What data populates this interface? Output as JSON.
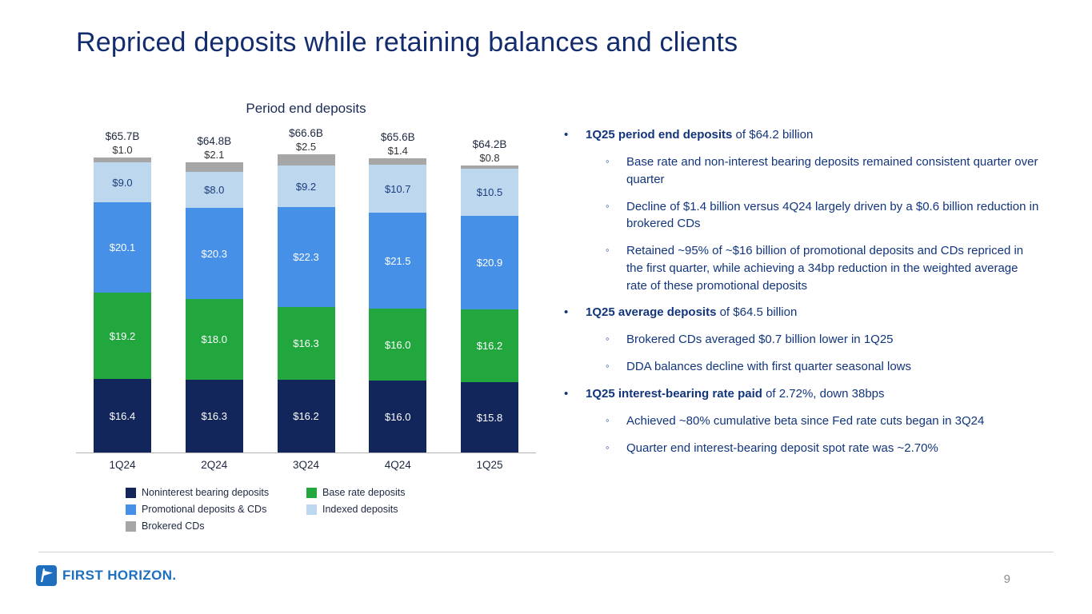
{
  "title": "Repriced deposits while retaining balances and clients",
  "chart_data": {
    "type": "bar",
    "stacked": true,
    "title": "Period end deposits",
    "unit": "$B",
    "ylim": [
      0,
      70
    ],
    "categories": [
      "1Q24",
      "2Q24",
      "3Q24",
      "4Q24",
      "1Q25"
    ],
    "totals_label": [
      "$65.7B",
      "$64.8B",
      "$66.6B",
      "$65.6B",
      "$64.2B"
    ],
    "series": [
      {
        "name": "Noninterest bearing deposits",
        "color": "#13265c",
        "text_color": "#ffffff",
        "values": [
          16.4,
          16.3,
          16.2,
          16.0,
          15.8
        ]
      },
      {
        "name": "Base rate deposits",
        "color": "#21a73e",
        "text_color": "#ffffff",
        "values": [
          19.2,
          18.0,
          16.3,
          16.0,
          16.2
        ]
      },
      {
        "name": "Promotional deposits & CDs",
        "color": "#4790e8",
        "text_color": "#ffffff",
        "values": [
          20.1,
          20.3,
          22.3,
          21.5,
          20.9
        ]
      },
      {
        "name": "Indexed deposits",
        "color": "#bdd7ee",
        "text_color": "#1b3c7d",
        "values": [
          9.0,
          8.0,
          9.2,
          10.7,
          10.5
        ]
      },
      {
        "name": "Brokered CDs",
        "color": "#a6a6a6",
        "text_color": "#333333",
        "label_position": "above",
        "values": [
          1.0,
          2.1,
          2.5,
          1.4,
          0.8
        ]
      }
    ],
    "legend_position": "bottom"
  },
  "bullets": [
    {
      "bold": "1Q25 period end deposits",
      "rest": " of $64.2 billion",
      "subs": [
        "Base rate and non-interest bearing deposits remained consistent quarter over quarter",
        "Decline of $1.4 billion versus 4Q24 largely driven by a $0.6 billion reduction in brokered CDs",
        "Retained ~95% of ~$16 billion of promotional deposits and CDs repriced in the first quarter, while achieving a 34bp reduction in the weighted average rate of these promotional deposits"
      ]
    },
    {
      "bold": "1Q25 average deposits",
      "rest": " of $64.5 billion",
      "subs": [
        "Brokered CDs averaged $0.7 billion lower in 1Q25",
        "DDA balances decline with first quarter seasonal lows"
      ]
    },
    {
      "bold": "1Q25 interest-bearing rate paid",
      "rest": " of 2.72%, down 38bps",
      "subs": [
        "Achieved ~80% cumulative beta since Fed rate cuts began in 3Q24",
        "Quarter end interest-bearing deposit spot rate was ~2.70%"
      ]
    }
  ],
  "glyphs": {
    "level1": "•",
    "level2": "◦"
  },
  "footer": {
    "logo_text": "FIRST HORIZON.",
    "page_number": "9"
  }
}
